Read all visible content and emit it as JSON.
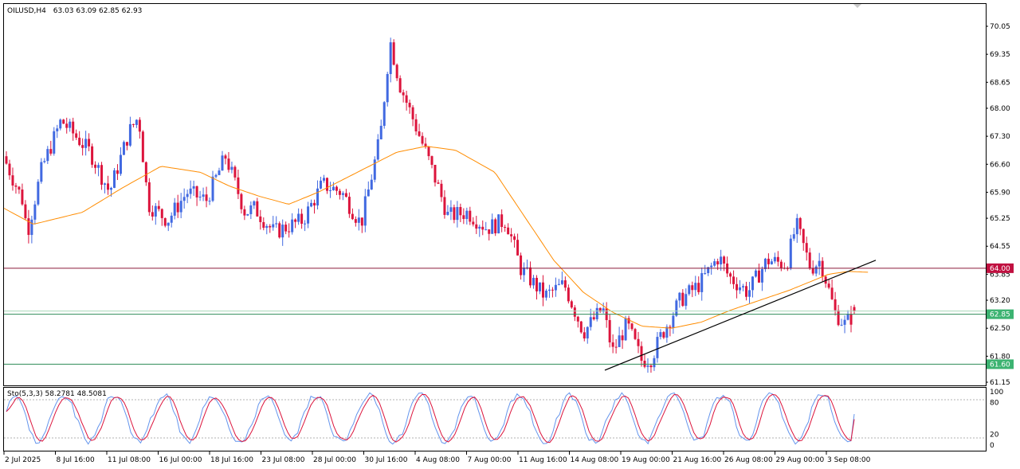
{
  "header": {
    "symbol": "OILUSD,H4",
    "ohlc": "63.03 63.09 62.85 62.93"
  },
  "colors": {
    "bull": "#4169e1",
    "bear": "#dc143c",
    "ma": "#ff8c00",
    "resistance": "#8b1a3a",
    "support": "#2e8b57",
    "trendline": "#000000",
    "stoch_main": "#6495ed",
    "stoch_signal": "#dc143c",
    "tag_support": "#3cb371",
    "tag_resistance": "#c01040"
  },
  "chart_data": [
    {
      "type": "candlestick",
      "symbol": "OILUSD",
      "timeframe": "H4",
      "last_ohlc": {
        "open": 63.03,
        "high": 63.09,
        "low": 62.85,
        "close": 62.93
      },
      "ylim": [
        61.15,
        70.35
      ],
      "y_ticks": [
        "70.05",
        "69.35",
        "68.65",
        "68.00",
        "67.30",
        "66.60",
        "65.90",
        "65.25",
        "64.55",
        "63.85",
        "63.20",
        "62.50",
        "61.80",
        "61.15"
      ],
      "x_ticks": [
        "2 Jul 2025",
        "8 Jul 16:00",
        "11 Jul 08:00",
        "16 Jul 00:00",
        "18 Jul 16:00",
        "23 Jul 08:00",
        "28 Jul 00:00",
        "30 Jul 16:00",
        "4 Aug 08:00",
        "7 Aug 00:00",
        "11 Aug 16:00",
        "14 Aug 08:00",
        "19 Aug 00:00",
        "21 Aug 16:00",
        "26 Aug 08:00",
        "29 Aug 00:00",
        "3 Sep 08:00"
      ],
      "horizontal_levels": [
        {
          "price": 64.0,
          "label": "64.00",
          "role": "resistance"
        },
        {
          "price": 62.85,
          "label": "62.85",
          "role": "current"
        },
        {
          "price": 61.6,
          "label": "61.60",
          "role": "support"
        }
      ],
      "trendline": [
        {
          "x": 0.612,
          "price": 61.45
        },
        {
          "x": 0.888,
          "price": 64.2
        }
      ],
      "moving_average_keypoints": [
        [
          0.0,
          65.5
        ],
        [
          0.03,
          65.1
        ],
        [
          0.08,
          65.4
        ],
        [
          0.12,
          66.0
        ],
        [
          0.16,
          66.55
        ],
        [
          0.2,
          66.4
        ],
        [
          0.23,
          66.05
        ],
        [
          0.26,
          65.8
        ],
        [
          0.29,
          65.6
        ],
        [
          0.32,
          65.9
        ],
        [
          0.36,
          66.4
        ],
        [
          0.4,
          66.9
        ],
        [
          0.43,
          67.05
        ],
        [
          0.46,
          66.95
        ],
        [
          0.5,
          66.4
        ],
        [
          0.53,
          65.3
        ],
        [
          0.56,
          64.2
        ],
        [
          0.59,
          63.4
        ],
        [
          0.62,
          62.9
        ],
        [
          0.65,
          62.55
        ],
        [
          0.68,
          62.5
        ],
        [
          0.71,
          62.65
        ],
        [
          0.74,
          62.95
        ],
        [
          0.77,
          63.2
        ],
        [
          0.8,
          63.45
        ],
        [
          0.82,
          63.65
        ],
        [
          0.84,
          63.85
        ],
        [
          0.86,
          63.92
        ],
        [
          0.88,
          63.9
        ]
      ],
      "close_keypoints": [
        [
          0.0,
          66.8
        ],
        [
          0.02,
          65.7
        ],
        [
          0.025,
          64.9
        ],
        [
          0.04,
          66.5
        ],
        [
          0.06,
          67.7
        ],
        [
          0.09,
          66.9
        ],
        [
          0.11,
          65.9
        ],
        [
          0.13,
          67.4
        ],
        [
          0.14,
          67.8
        ],
        [
          0.15,
          65.6
        ],
        [
          0.17,
          65.2
        ],
        [
          0.19,
          65.9
        ],
        [
          0.21,
          65.7
        ],
        [
          0.23,
          66.8
        ],
        [
          0.25,
          65.4
        ],
        [
          0.26,
          65.5
        ],
        [
          0.28,
          64.9
        ],
        [
          0.31,
          65.2
        ],
        [
          0.33,
          66.1
        ],
        [
          0.35,
          65.9
        ],
        [
          0.37,
          65.1
        ],
        [
          0.39,
          67.3
        ],
        [
          0.4,
          69.7
        ],
        [
          0.41,
          68.6
        ],
        [
          0.44,
          66.7
        ],
        [
          0.46,
          65.3
        ],
        [
          0.48,
          65.4
        ],
        [
          0.5,
          65.0
        ],
        [
          0.52,
          65.2
        ],
        [
          0.535,
          64.0
        ],
        [
          0.56,
          63.3
        ],
        [
          0.58,
          63.6
        ],
        [
          0.6,
          62.4
        ],
        [
          0.62,
          63.0
        ],
        [
          0.63,
          61.9
        ],
        [
          0.645,
          62.6
        ],
        [
          0.66,
          61.7
        ],
        [
          0.67,
          61.75
        ],
        [
          0.68,
          62.3
        ],
        [
          0.7,
          63.2
        ],
        [
          0.72,
          63.6
        ],
        [
          0.74,
          64.3
        ],
        [
          0.75,
          63.8
        ],
        [
          0.77,
          63.4
        ],
        [
          0.79,
          64.2
        ],
        [
          0.81,
          64.1
        ],
        [
          0.82,
          65.1
        ],
        [
          0.835,
          64.0
        ],
        [
          0.845,
          64.2
        ],
        [
          0.86,
          62.9
        ],
        [
          0.87,
          62.6
        ],
        [
          0.878,
          62.8
        ],
        [
          0.88,
          62.93
        ]
      ]
    },
    {
      "type": "line",
      "name": "Sto(5,3,3)",
      "readout": "Sto(5,3,3) 58.2781 48.5081",
      "values": {
        "main": 58.2781,
        "signal": 48.5081
      },
      "ylim": [
        0,
        100
      ],
      "y_ticks": [
        "100",
        "80",
        "20",
        "0"
      ],
      "levels": [
        80,
        20
      ]
    }
  ]
}
